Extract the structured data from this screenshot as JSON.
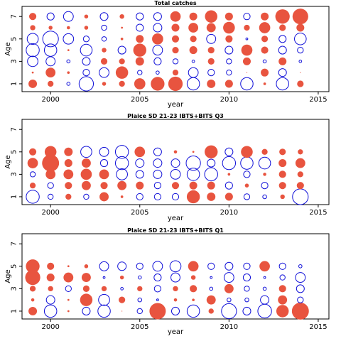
{
  "colors": {
    "positive": "#e8543f",
    "negative": "#1010d8",
    "frame": "#000000"
  },
  "chart_data": [
    {
      "type": "scatter",
      "title": "Total catches",
      "xlabel": "year",
      "ylabel": "Age",
      "xlim": [
        1998.4,
        2015.6
      ],
      "ylim": [
        0.3,
        7.9
      ],
      "xticks": [
        2000,
        2005,
        2010,
        2015
      ],
      "yticks": [
        1,
        3,
        5,
        7
      ],
      "years": [
        1999,
        2000,
        2001,
        2002,
        2003,
        2004,
        2005,
        2006,
        2007,
        2008,
        2009,
        2010,
        2011,
        2012,
        2013,
        2014
      ],
      "ages": [
        1,
        2,
        3,
        4,
        5,
        6,
        7
      ],
      "values_by_age": [
        [
          1.3,
          0.9,
          -0.5,
          -2.2,
          0.6,
          0.9,
          1.7,
          2.1,
          2.2,
          -1.9,
          1.3,
          1.2,
          -1.9,
          0.4,
          -1.9,
          1.0
        ],
        [
          0.3,
          1.5,
          0.4,
          -1.0,
          -1.5,
          1.9,
          -0.7,
          -0.5,
          0.9,
          -1.5,
          -1.0,
          -0.8,
          0.0,
          1.2,
          -1.2,
          0.0
        ],
        [
          -1.6,
          -1.4,
          -0.5,
          -1.2,
          1.0,
          0.9,
          1.3,
          -1.1,
          -0.8,
          -0.4,
          1.0,
          -0.8,
          1.2,
          -0.5,
          1.2,
          -0.4
        ],
        [
          -2.0,
          -1.9,
          0.3,
          -1.8,
          0.7,
          -1.2,
          2.0,
          -1.5,
          1.0,
          1.2,
          1.0,
          -1.2,
          1.7,
          1.1,
          -1.2,
          -0.9
        ],
        [
          -1.7,
          -2.4,
          -1.6,
          -0.9,
          -0.7,
          0.4,
          1.2,
          1.7,
          1.1,
          1.0,
          -1.4,
          1.1,
          -0.3,
          1.0,
          -1.1,
          -1.8
        ],
        [
          0.8,
          0.6,
          0.5,
          0.6,
          -0.8,
          0.3,
          -1.1,
          -1.3,
          1.2,
          1.5,
          1.4,
          1.8,
          0.9,
          1.7,
          1.0,
          1.2
        ],
        [
          1.1,
          -1.1,
          -1.5,
          0.6,
          -1.2,
          0.7,
          -1.1,
          -1.2,
          1.6,
          1.2,
          1.9,
          1.2,
          -1.0,
          1.2,
          2.2,
          2.4
        ]
      ]
    },
    {
      "type": "scatter",
      "title": "Plaice SD 21-23 IBTS+BITS Q3",
      "xlabel": "year",
      "ylabel": "Age",
      "xlim": [
        1998.4,
        2015.6
      ],
      "ylim": [
        0.3,
        7.9
      ],
      "xticks": [
        2000,
        2005,
        2010,
        2015
      ],
      "yticks": [
        1,
        3,
        5,
        7
      ],
      "years": [
        1999,
        2000,
        2001,
        2002,
        2003,
        2004,
        2005,
        2006,
        2007,
        2008,
        2009,
        2010,
        2011,
        2012,
        2013,
        2014
      ],
      "ages": [
        1,
        2,
        3,
        4,
        5
      ],
      "values_by_age": [
        [
          -2.0,
          -0.8,
          0.9,
          -0.8,
          1.4,
          0.4,
          -1.0,
          -1.0,
          -1.0,
          2.0,
          1.3,
          1.2,
          -0.9,
          -0.6,
          0.7,
          -2.4
        ],
        [
          0.9,
          -0.9,
          1.1,
          1.4,
          1.1,
          1.4,
          1.2,
          -1.0,
          1.1,
          1.2,
          1.2,
          -1.1,
          0.6,
          -1.0,
          1.1,
          1.1
        ],
        [
          -0.8,
          1.5,
          1.5,
          1.7,
          1.5,
          -1.7,
          -1.2,
          -1.3,
          -1.5,
          -1.9,
          -2.0,
          0.4,
          -1.0,
          0.5,
          1.1,
          0.9
        ],
        [
          1.6,
          2.6,
          1.2,
          1.4,
          -1.1,
          -2.0,
          -1.3,
          -1.3,
          -1.3,
          -2.2,
          -1.2,
          -2.0,
          -1.9,
          -1.8,
          1.2,
          1.5
        ],
        [
          1.1,
          1.8,
          1.3,
          -1.7,
          -1.4,
          -2.0,
          1.6,
          -1.2,
          0.5,
          0.3,
          2.0,
          -1.2,
          1.8,
          0.9,
          1.0,
          0.8
        ]
      ]
    },
    {
      "type": "scatter",
      "title": "Plaice SD 21-23 IBTS+BITS Q1",
      "xlabel": "year",
      "ylabel": "Age",
      "xlim": [
        1998.4,
        2015.6
      ],
      "ylim": [
        0.3,
        7.9
      ],
      "xticks": [
        2000,
        2005,
        2010,
        2015
      ],
      "yticks": [
        1,
        3,
        5,
        7
      ],
      "years": [
        1999,
        2000,
        2001,
        2002,
        2003,
        2004,
        2005,
        2006,
        2007,
        2008,
        2009,
        2010,
        2011,
        2012,
        2013,
        2014
      ],
      "ages": [
        1,
        2,
        3,
        4,
        5
      ],
      "values_by_age": [
        [
          1.3,
          -1.9,
          0.3,
          -1.2,
          -1.9,
          0.0,
          -0.8,
          2.5,
          -1.2,
          -1.9,
          0.8,
          -2.3,
          -1.2,
          -2.1,
          1.9,
          2.6
        ],
        [
          0.5,
          -1.3,
          0.3,
          1.9,
          -1.7,
          1.0,
          -0.6,
          -0.3,
          0.5,
          0.4,
          1.4,
          -0.6,
          -0.6,
          -1.3,
          1.4,
          -0.9
        ],
        [
          0.9,
          0.8,
          -0.9,
          1.0,
          0.8,
          -0.4,
          0.8,
          -1.0,
          0.8,
          1.1,
          -0.5,
          1.4,
          -0.8,
          -0.5,
          1.1,
          -1.2
        ],
        [
          2.3,
          1.2,
          1.5,
          1.4,
          -0.3,
          0.6,
          -0.5,
          -1.1,
          -1.4,
          0.7,
          -0.3,
          -1.5,
          -1.1,
          -0.3,
          -0.8,
          -1.5
        ],
        [
          2.1,
          1.1,
          0.3,
          0.6,
          -1.4,
          -1.3,
          -1.0,
          -1.5,
          -1.7,
          1.6,
          -1.0,
          -1.2,
          -1.0,
          1.6,
          -1.0,
          -0.5
        ]
      ]
    }
  ]
}
